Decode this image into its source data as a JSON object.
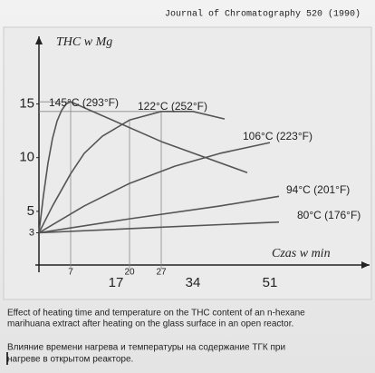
{
  "source": "Journal of Chromatography 520 (1990)",
  "chart_data": {
    "type": "line",
    "ylabel": "THC w Mg",
    "xlabel": "Czas w min",
    "xlim": [
      0,
      73
    ],
    "ylim": [
      0,
      21.3
    ],
    "xticks": [
      17,
      34,
      51
    ],
    "xticks_minor": [
      7,
      20,
      27
    ],
    "yticks": [
      3,
      5,
      10,
      15
    ],
    "color": "#555555",
    "series": [
      {
        "name": "145°C (293°F)",
        "x": [
          0,
          1,
          2,
          3,
          4,
          5,
          6,
          7,
          27,
          46
        ],
        "values": [
          3,
          6.5,
          9.5,
          11.8,
          13.4,
          14.4,
          15,
          15.2,
          11.5,
          8.6
        ]
      },
      {
        "name": "122°C (252°F)",
        "x": [
          0,
          3,
          7,
          10,
          14,
          20,
          27,
          34,
          41
        ],
        "values": [
          3,
          5.5,
          8.5,
          10.4,
          12,
          13.5,
          14.3,
          14.3,
          13.6
        ]
      },
      {
        "name": "106°C (223°F)",
        "x": [
          0,
          10,
          20,
          30,
          40,
          51
        ],
        "values": [
          3,
          5.5,
          7.6,
          9.2,
          10.4,
          11.4
        ]
      },
      {
        "name": "94°C (201°F)",
        "x": [
          0,
          20,
          40,
          53
        ],
        "values": [
          3,
          4.3,
          5.5,
          6.4
        ]
      },
      {
        "name": "80°C (176°F)",
        "x": [
          0,
          26,
          53
        ],
        "values": [
          3,
          3.5,
          4
        ]
      }
    ]
  },
  "caption_en": [
    "Effect of heating time and temperature on the THC content of an n-hexane",
    "marihuana extract after heating on the glass surface in an open reactor."
  ],
  "caption_ru": [
    "Влияние времени нагрева и температуры на содержание ТГК при",
    "нагреве в открытом реакторе."
  ]
}
